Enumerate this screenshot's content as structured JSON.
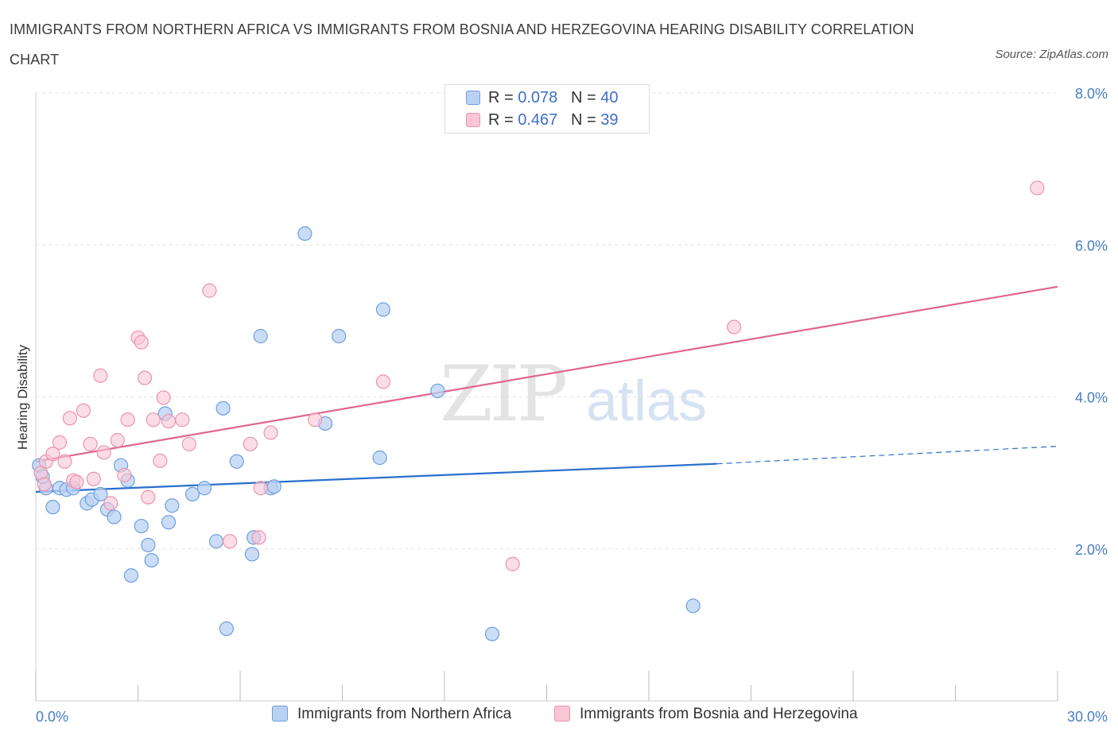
{
  "title": "IMMIGRANTS FROM NORTHERN AFRICA VS IMMIGRANTS FROM BOSNIA AND HERZEGOVINA HEARING DISABILITY CORRELATION CHART",
  "source": "Source: ZipAtlas.com",
  "watermark": {
    "zip": "ZIP",
    "atlas": "atlas"
  },
  "legend_top": {
    "rows": [
      {
        "r_label": "R = ",
        "r_value": "0.078",
        "n_label": "N = ",
        "n_value": "40"
      },
      {
        "r_label": "R = ",
        "r_value": "0.467",
        "n_label": "N = ",
        "n_value": "39"
      }
    ]
  },
  "legend_bottom": {
    "series1": "Immigrants from Northern Africa",
    "series2": "Immigrants from Bosnia and Herzegovina"
  },
  "colors": {
    "blue_fill": "#b9d2f3",
    "blue_stroke": "#6f9fde",
    "blue_line": "#2a6fcc",
    "pink_fill": "#f8c6d5",
    "pink_stroke": "#ea94ae",
    "pink_line": "#e0668e",
    "axis_text": "#4a7cc4",
    "grid": "#e2e2e2"
  },
  "chart_data": {
    "type": "scatter",
    "title": "IMMIGRANTS FROM NORTHERN AFRICA VS IMMIGRANTS FROM BOSNIA AND HERZEGOVINA HEARING DISABILITY CORRELATION CHART",
    "xlabel": "",
    "ylabel": "Hearing Disability",
    "xlim": [
      0,
      30
    ],
    "ylim": [
      0,
      8
    ],
    "x_tick_labels": [
      "0.0%",
      "30.0%"
    ],
    "y_ticks": [
      2,
      4,
      6,
      8
    ],
    "y_tick_labels": [
      "2.0%",
      "4.0%",
      "6.0%",
      "8.0%"
    ],
    "grid": true,
    "series": [
      {
        "name": "Immigrants from Northern Africa",
        "R": 0.078,
        "N": 40,
        "points": [
          [
            0.1,
            3.1
          ],
          [
            0.3,
            2.8
          ],
          [
            0.5,
            2.55
          ],
          [
            0.7,
            2.8
          ],
          [
            0.9,
            2.78
          ],
          [
            1.1,
            2.8
          ],
          [
            1.5,
            2.6
          ],
          [
            1.65,
            2.65
          ],
          [
            1.9,
            2.72
          ],
          [
            2.1,
            2.52
          ],
          [
            2.3,
            2.42
          ],
          [
            2.5,
            3.1
          ],
          [
            2.7,
            2.9
          ],
          [
            2.8,
            1.65
          ],
          [
            3.1,
            2.3
          ],
          [
            3.3,
            2.05
          ],
          [
            3.4,
            1.85
          ],
          [
            3.8,
            3.78
          ],
          [
            3.9,
            2.35
          ],
          [
            4.0,
            2.57
          ],
          [
            4.6,
            2.72
          ],
          [
            4.95,
            2.8
          ],
          [
            5.3,
            2.1
          ],
          [
            5.5,
            3.85
          ],
          [
            5.6,
            0.95
          ],
          [
            5.9,
            3.15
          ],
          [
            6.35,
            1.93
          ],
          [
            6.4,
            2.15
          ],
          [
            6.6,
            4.8
          ],
          [
            6.9,
            2.8
          ],
          [
            7.0,
            2.82
          ],
          [
            7.9,
            6.15
          ],
          [
            8.5,
            3.65
          ],
          [
            8.9,
            4.8
          ],
          [
            10.1,
            3.2
          ],
          [
            10.2,
            5.15
          ],
          [
            11.8,
            4.08
          ],
          [
            13.4,
            0.88
          ],
          [
            19.3,
            1.25
          ],
          [
            0.2,
            2.95
          ]
        ],
        "trend": {
          "x": [
            0,
            20
          ],
          "y": [
            2.75,
            3.12
          ],
          "dashed_extension": {
            "x": [
              20,
              30
            ],
            "y": [
              3.12,
              3.35
            ]
          }
        }
      },
      {
        "name": "Immigrants from Bosnia and Herzegovina",
        "R": 0.467,
        "N": 39,
        "points": [
          [
            0.15,
            3.0
          ],
          [
            0.3,
            3.15
          ],
          [
            0.5,
            3.25
          ],
          [
            0.7,
            3.4
          ],
          [
            0.85,
            3.15
          ],
          [
            1.0,
            3.72
          ],
          [
            1.1,
            2.9
          ],
          [
            1.2,
            2.88
          ],
          [
            1.4,
            3.82
          ],
          [
            1.6,
            3.38
          ],
          [
            1.7,
            2.92
          ],
          [
            1.9,
            4.28
          ],
          [
            2.0,
            3.27
          ],
          [
            2.2,
            2.6
          ],
          [
            2.4,
            3.43
          ],
          [
            2.6,
            2.97
          ],
          [
            2.7,
            3.7
          ],
          [
            3.0,
            4.78
          ],
          [
            3.1,
            4.72
          ],
          [
            3.2,
            4.25
          ],
          [
            3.3,
            2.68
          ],
          [
            3.45,
            3.7
          ],
          [
            3.65,
            3.16
          ],
          [
            3.75,
            3.99
          ],
          [
            3.9,
            3.68
          ],
          [
            4.3,
            3.7
          ],
          [
            4.5,
            3.38
          ],
          [
            5.1,
            5.4
          ],
          [
            5.7,
            2.1
          ],
          [
            6.3,
            3.38
          ],
          [
            6.55,
            2.15
          ],
          [
            6.6,
            2.8
          ],
          [
            6.9,
            3.53
          ],
          [
            8.2,
            3.7
          ],
          [
            10.2,
            4.2
          ],
          [
            14.0,
            1.8
          ],
          [
            20.5,
            4.92
          ],
          [
            29.4,
            6.75
          ],
          [
            0.25,
            2.85
          ]
        ],
        "trend": {
          "x": [
            0,
            30
          ],
          "y": [
            3.15,
            5.45
          ]
        }
      }
    ]
  }
}
